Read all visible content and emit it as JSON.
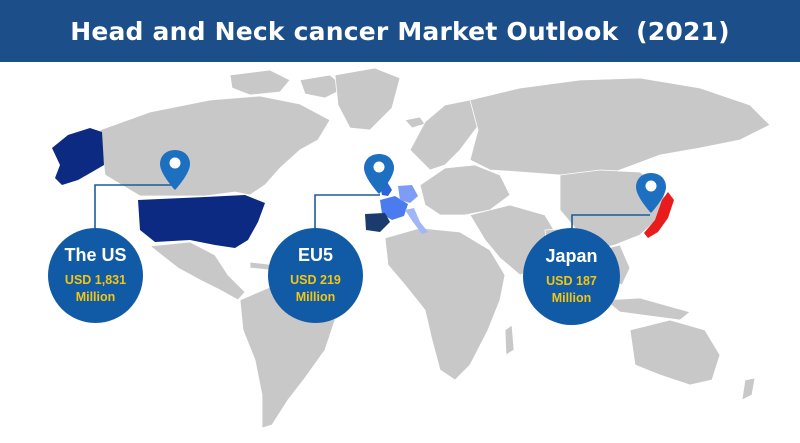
{
  "title": "Head and Neck cancer Market Outlook  (2021)",
  "regions": [
    {
      "name": "The US",
      "value": "USD 1,831",
      "unit": "Million",
      "highlight_color": "#0d2a82"
    },
    {
      "name": "EU5",
      "value": "USD 219",
      "unit": "Million",
      "highlight_color": "#2b63d9"
    },
    {
      "name": "Japan",
      "value": "USD 187",
      "unit": "Million",
      "highlight_color": "#e81c1c"
    }
  ],
  "colors": {
    "header": "#1c4f8a",
    "bubble": "#115aa6",
    "bubble_value_text": "#f3c613",
    "land": "#c8c8c8",
    "pin": "#1d6fbf"
  },
  "icons": [
    "map-pin-icon"
  ]
}
